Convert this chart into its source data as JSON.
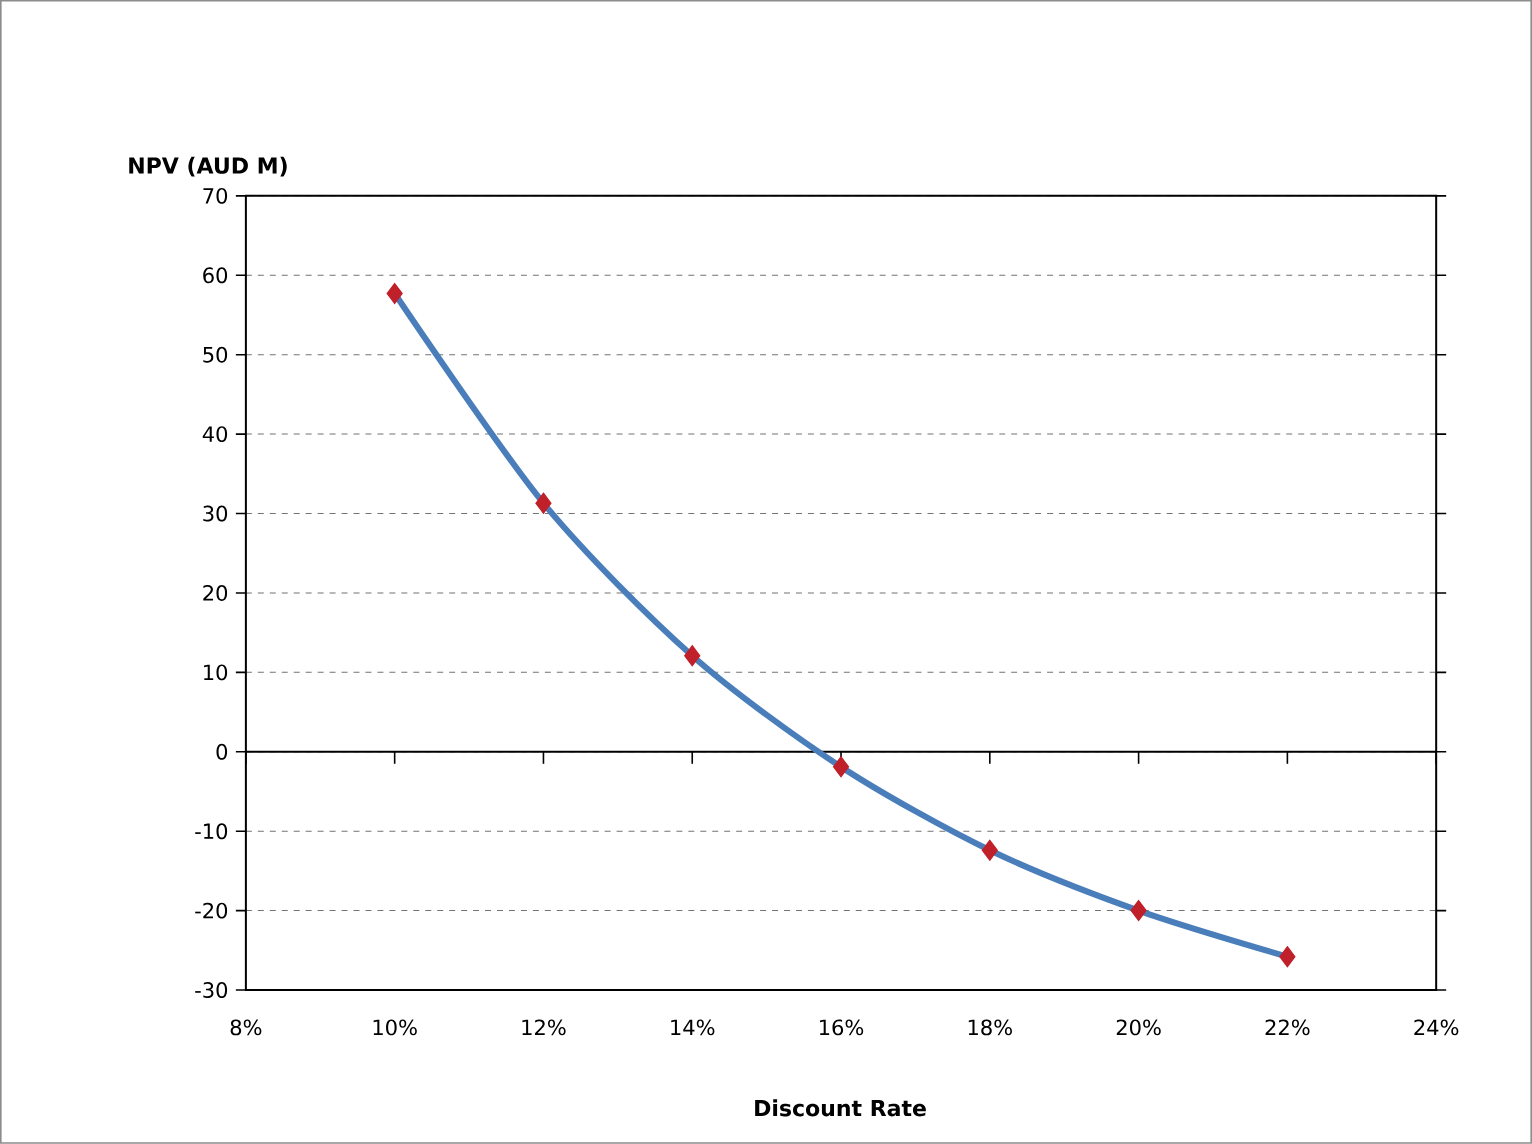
{
  "chart_data": {
    "type": "line",
    "xlabel": "Discount Rate",
    "ylabel": "NPV (AUD M)",
    "x": [
      10,
      12,
      14,
      16,
      18,
      20,
      22
    ],
    "series": [
      {
        "color": "#4a7ebb",
        "colors": [
          "#c0202a",
          "#c0202a",
          "#c0202a",
          "#c0202a",
          "#c0202a",
          "#c0202a",
          "#c0202a"
        ],
        "values": [
          57.7,
          31.3,
          12.1,
          -1.9,
          -12.4,
          -20,
          -25.8
        ]
      }
    ],
    "xlim": [
      8,
      24
    ],
    "xticks": [
      {
        "value": 8,
        "label": "8%"
      },
      {
        "value": 10,
        "label": "10%"
      },
      {
        "value": 12,
        "label": "12%"
      },
      {
        "value": 14,
        "label": "14%"
      },
      {
        "value": 16,
        "label": "16%"
      },
      {
        "value": 18,
        "label": "18%"
      },
      {
        "value": 20,
        "label": "20%"
      },
      {
        "value": 22,
        "label": "22%"
      },
      {
        "value": 24,
        "label": "24%"
      }
    ],
    "ylim": [
      -30,
      70
    ],
    "yticks": [
      -30,
      -20,
      -10,
      0,
      10,
      20,
      30,
      40,
      50,
      60,
      70
    ],
    "grid": "y",
    "marker": "diamond",
    "line_style": "solid"
  }
}
